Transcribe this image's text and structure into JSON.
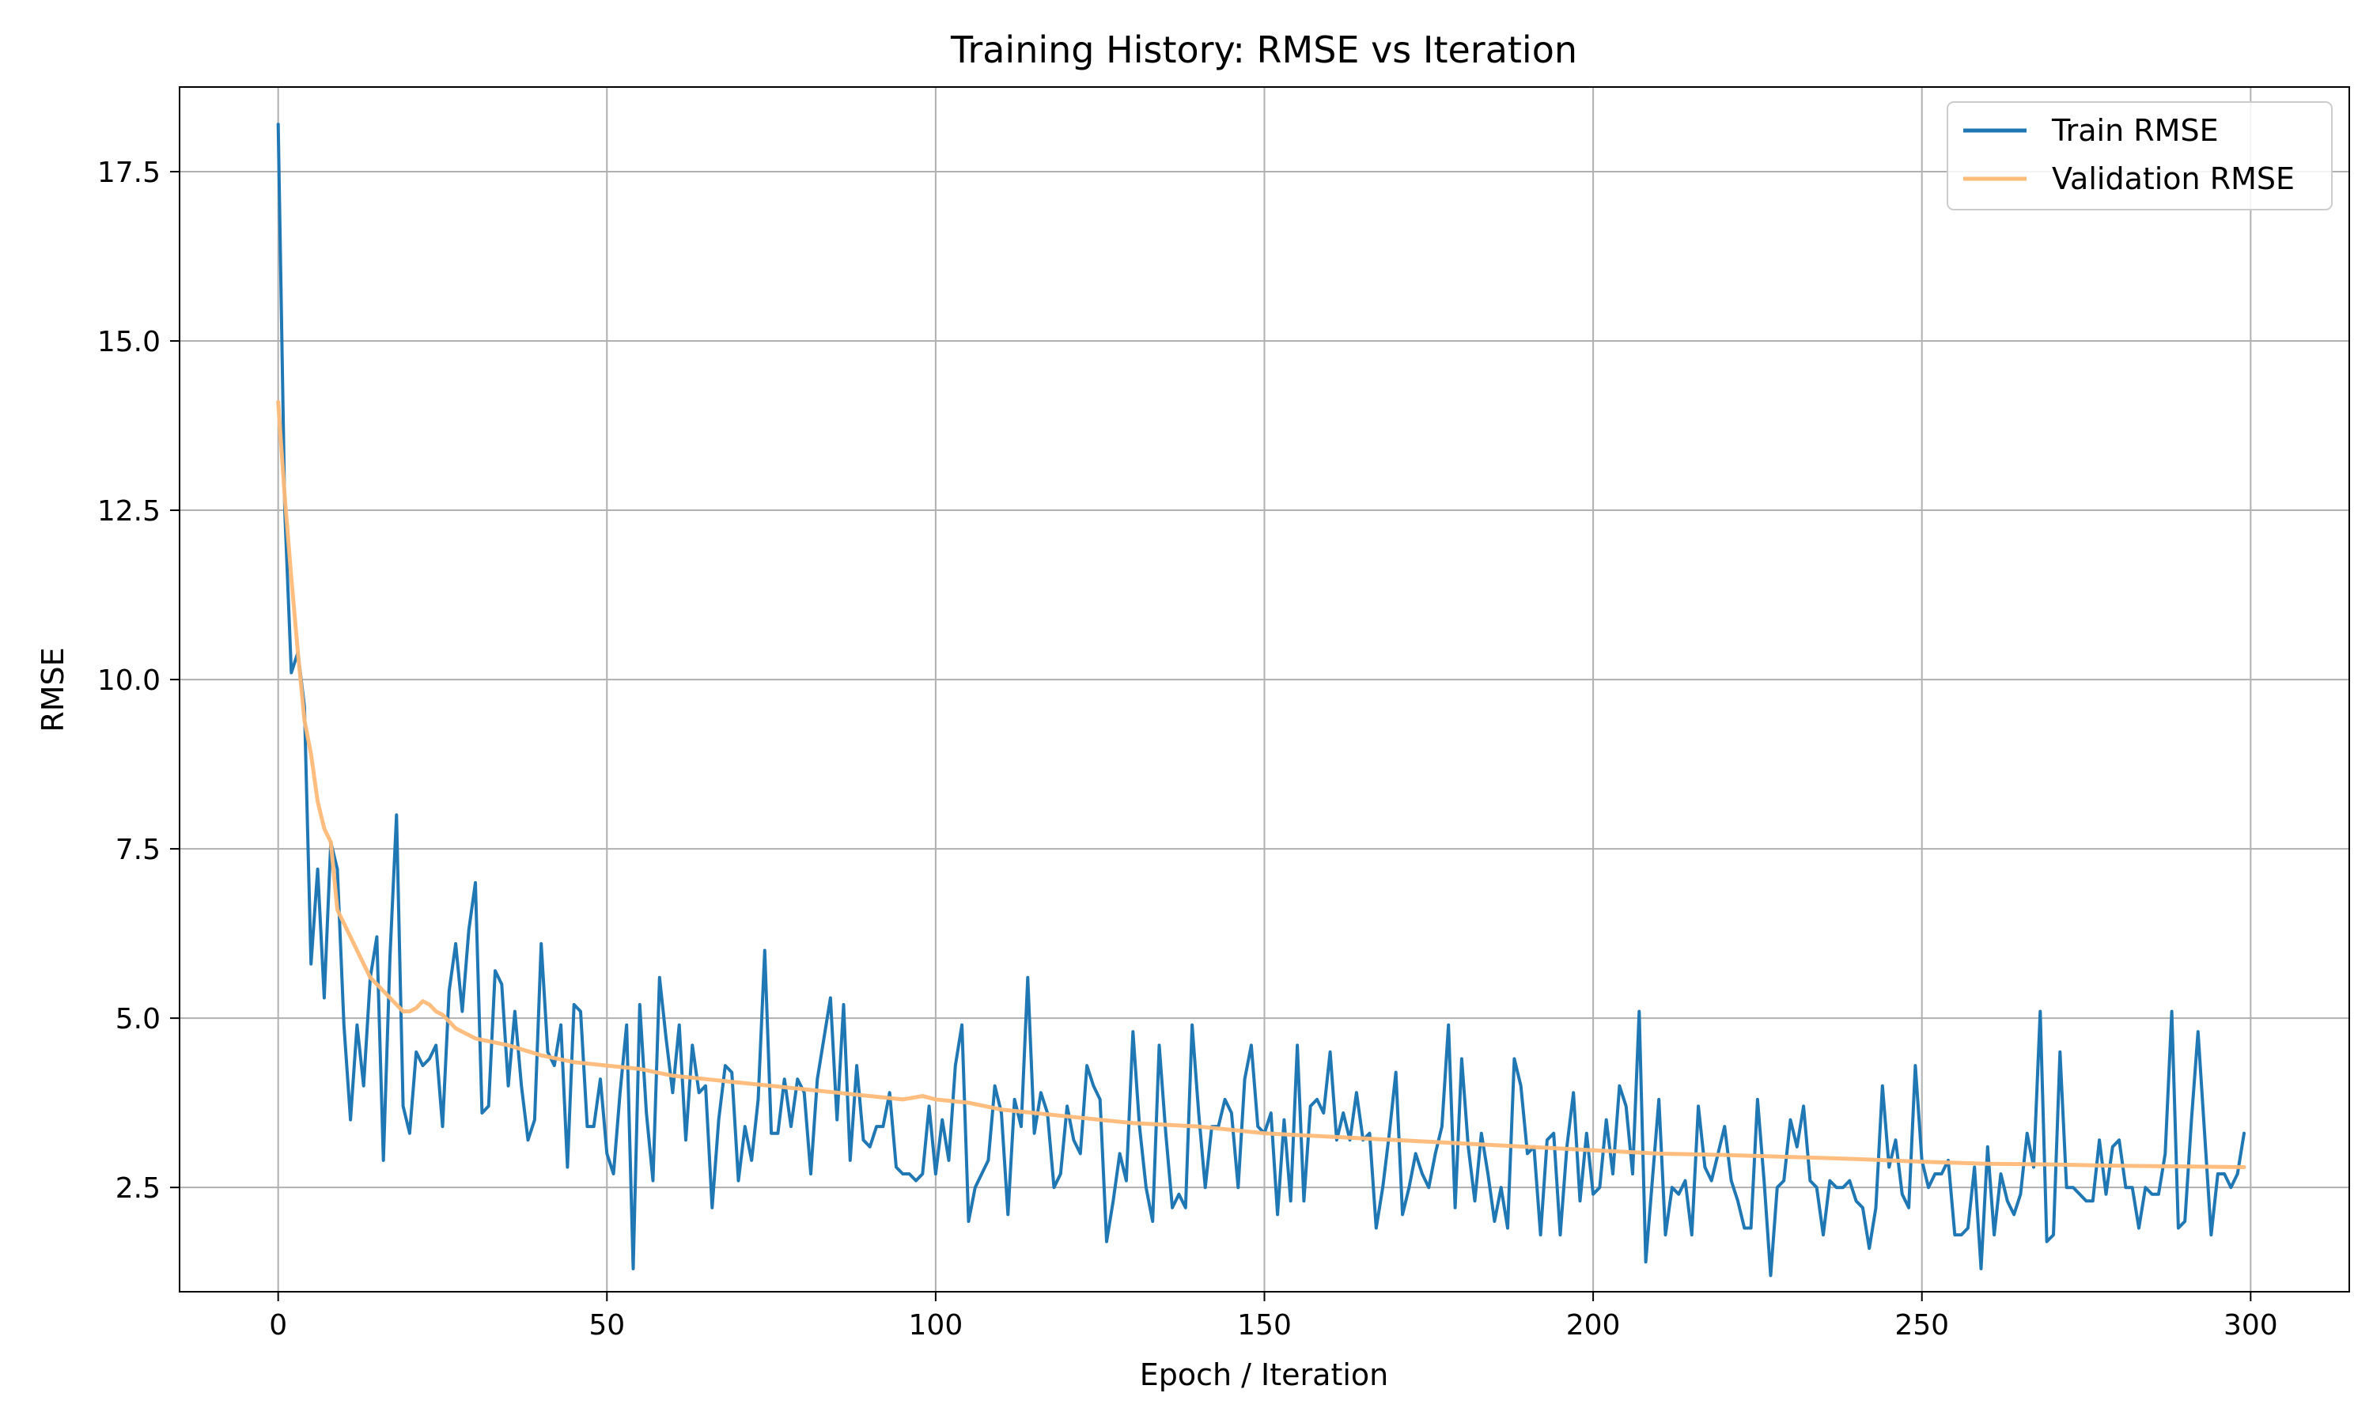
{
  "chart_data": {
    "type": "line",
    "title": "Training History: RMSE vs Iteration",
    "xlabel": "Epoch / Iteration",
    "ylabel": "RMSE",
    "xlim": [
      -15,
      315
    ],
    "ylim": [
      0.96,
      18.75
    ],
    "xticks": [
      0,
      50,
      100,
      150,
      200,
      250,
      300
    ],
    "yticks": [
      2.5,
      5.0,
      7.5,
      10.0,
      12.5,
      15.0,
      17.5
    ],
    "xtick_labels": [
      "0",
      "50",
      "100",
      "150",
      "200",
      "250",
      "300"
    ],
    "ytick_labels": [
      "2.5",
      "5.0",
      "7.5",
      "10.0",
      "12.5",
      "15.0",
      "17.5"
    ],
    "grid": true,
    "legend_position": "top-right",
    "series": [
      {
        "name": "Train RMSE",
        "color": "#1f77b4",
        "x_start": 0,
        "x_step": 1,
        "values": [
          18.2,
          12.5,
          10.1,
          10.4,
          9.6,
          5.8,
          7.2,
          5.3,
          7.6,
          7.2,
          4.9,
          3.5,
          4.9,
          4.0,
          5.6,
          6.2,
          2.9,
          5.9,
          8.0,
          3.7,
          3.3,
          4.5,
          4.3,
          4.4,
          4.6,
          3.4,
          5.4,
          6.1,
          5.1,
          6.3,
          7.0,
          3.6,
          3.7,
          5.7,
          5.5,
          4.0,
          5.1,
          4.0,
          3.2,
          3.5,
          6.1,
          4.5,
          4.3,
          4.9,
          2.8,
          5.2,
          5.1,
          3.4,
          3.4,
          4.1,
          3.0,
          2.7,
          3.9,
          4.9,
          1.3,
          5.2,
          3.6,
          2.6,
          5.6,
          4.7,
          3.9,
          4.9,
          3.2,
          4.6,
          3.9,
          4.0,
          2.2,
          3.5,
          4.3,
          4.2,
          2.6,
          3.4,
          2.9,
          3.8,
          6.0,
          3.3,
          3.3,
          4.1,
          3.4,
          4.1,
          3.9,
          2.7,
          4.1,
          4.7,
          5.3,
          3.5,
          5.2,
          2.9,
          4.3,
          3.2,
          3.1,
          3.4,
          3.4,
          3.9,
          2.8,
          2.7,
          2.7,
          2.6,
          2.7,
          3.7,
          2.7,
          3.5,
          2.9,
          4.3,
          4.9,
          2.0,
          2.5,
          2.7,
          2.9,
          4.0,
          3.6,
          2.1,
          3.8,
          3.4,
          5.6,
          3.3,
          3.9,
          3.6,
          2.5,
          2.7,
          3.7,
          3.2,
          3.0,
          4.3,
          4.0,
          3.8,
          1.7,
          2.3,
          3.0,
          2.6,
          4.8,
          3.4,
          2.5,
          2.0,
          4.6,
          3.3,
          2.2,
          2.4,
          2.2,
          4.9,
          3.6,
          2.5,
          3.4,
          3.4,
          3.8,
          3.6,
          2.5,
          4.1,
          4.6,
          3.4,
          3.3,
          3.6,
          2.1,
          3.5,
          2.3,
          4.6,
          2.3,
          3.7,
          3.8,
          3.6,
          4.5,
          3.2,
          3.6,
          3.2,
          3.9,
          3.2,
          3.3,
          1.9,
          2.5,
          3.3,
          4.2,
          2.1,
          2.5,
          3.0,
          2.7,
          2.5,
          3.0,
          3.4,
          4.9,
          2.2,
          4.4,
          3.1,
          2.3,
          3.3,
          2.7,
          2.0,
          2.5,
          1.9,
          4.4,
          4.0,
          3.0,
          3.1,
          1.8,
          3.2,
          3.3,
          1.8,
          3.1,
          3.9,
          2.3,
          3.3,
          2.4,
          2.5,
          3.5,
          2.7,
          4.0,
          3.7,
          2.7,
          5.1,
          1.4,
          2.6,
          3.8,
          1.8,
          2.5,
          2.4,
          2.6,
          1.8,
          3.7,
          2.8,
          2.6,
          3.0,
          3.4,
          2.6,
          2.3,
          1.9,
          1.9,
          3.8,
          2.6,
          1.2,
          2.5,
          2.6,
          3.5,
          3.1,
          3.7,
          2.6,
          2.5,
          1.8,
          2.6,
          2.5,
          2.5,
          2.6,
          2.3,
          2.2,
          1.6,
          2.2,
          4.0,
          2.8,
          3.2,
          2.4,
          2.2,
          4.3,
          2.9,
          2.5,
          2.7,
          2.7,
          2.9,
          1.8,
          1.8,
          1.9,
          2.8,
          1.3,
          3.1,
          1.8,
          2.7,
          2.3,
          2.1,
          2.4,
          3.3,
          2.8,
          5.1,
          1.7,
          1.8,
          4.5,
          2.5,
          2.5,
          2.4,
          2.3,
          2.3,
          3.2,
          2.4,
          3.1,
          3.2,
          2.5,
          2.5,
          1.9,
          2.5,
          2.4,
          2.4,
          3.0,
          5.1,
          1.9,
          2.0,
          3.5,
          4.8,
          3.3,
          1.8,
          2.7,
          2.7,
          2.5,
          2.7,
          3.3
        ]
      },
      {
        "name": "Validation RMSE",
        "color": "#ffbb78",
        "x": [
          0,
          1,
          2,
          3,
          4,
          5,
          6,
          7,
          8,
          9,
          10,
          11,
          12,
          13,
          14,
          15,
          16,
          17,
          18,
          19,
          20,
          21,
          22,
          23,
          24,
          25,
          26,
          27,
          28,
          29,
          30,
          35,
          40,
          45,
          50,
          55,
          60,
          65,
          70,
          75,
          80,
          85,
          90,
          95,
          98,
          100,
          105,
          110,
          115,
          120,
          125,
          130,
          140,
          150,
          160,
          170,
          180,
          190,
          200,
          210,
          220,
          230,
          240,
          250,
          260,
          270,
          280,
          290,
          299
        ],
        "values": [
          14.1,
          12.7,
          11.5,
          10.4,
          9.4,
          8.9,
          8.2,
          7.8,
          7.6,
          6.6,
          6.4,
          6.2,
          6.0,
          5.8,
          5.6,
          5.5,
          5.4,
          5.3,
          5.2,
          5.1,
          5.1,
          5.15,
          5.25,
          5.2,
          5.1,
          5.05,
          4.95,
          4.85,
          4.8,
          4.75,
          4.7,
          4.6,
          4.45,
          4.35,
          4.3,
          4.25,
          4.15,
          4.1,
          4.05,
          4.0,
          3.95,
          3.9,
          3.85,
          3.8,
          3.85,
          3.8,
          3.75,
          3.65,
          3.6,
          3.55,
          3.5,
          3.45,
          3.4,
          3.3,
          3.25,
          3.2,
          3.15,
          3.1,
          3.05,
          3.0,
          2.98,
          2.95,
          2.92,
          2.88,
          2.85,
          2.84,
          2.82,
          2.81,
          2.8
        ]
      }
    ]
  }
}
